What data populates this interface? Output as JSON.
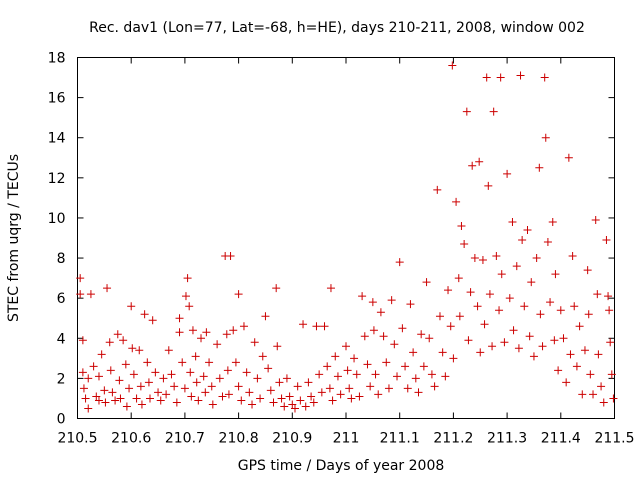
{
  "chart_data": {
    "type": "scatter",
    "title": "Rec. dav1 (Lon=77, Lat=-68, h=HE), days 210-211, 2008, window 002",
    "xlabel": "GPS time / Days of year 2008",
    "ylabel": "STEC from uqrg / TECUs",
    "xlim": [
      210.5,
      211.5
    ],
    "ylim": [
      0,
      18
    ],
    "xticks": [
      210.5,
      210.6,
      210.7,
      210.8,
      210.9,
      211,
      211.1,
      211.2,
      211.3,
      211.4,
      211.5
    ],
    "xtick_labels": [
      "210.5",
      "210.6",
      "210.7",
      "210.8",
      "210.9",
      "211",
      "211.1",
      "211.2",
      "211.3",
      "211.4",
      "211.5"
    ],
    "yticks": [
      0,
      2,
      4,
      6,
      8,
      10,
      12,
      14,
      16,
      18
    ],
    "ytick_labels": [
      "0",
      "2",
      "4",
      "6",
      "8",
      "10",
      "12",
      "14",
      "16",
      "18"
    ],
    "marker": "plus",
    "color": "#cc0000",
    "grid": false,
    "legend": "none",
    "points": [
      [
        210.505,
        7.0
      ],
      [
        210.505,
        6.2
      ],
      [
        210.51,
        3.9
      ],
      [
        210.51,
        2.3
      ],
      [
        210.512,
        1.5
      ],
      [
        210.515,
        1.0
      ],
      [
        210.52,
        2.0
      ],
      [
        210.52,
        0.5
      ],
      [
        210.525,
        6.2
      ],
      [
        210.53,
        2.6
      ],
      [
        210.535,
        1.1
      ],
      [
        210.54,
        2.1
      ],
      [
        210.54,
        0.9
      ],
      [
        210.545,
        3.2
      ],
      [
        210.55,
        1.4
      ],
      [
        210.552,
        0.8
      ],
      [
        210.555,
        6.5
      ],
      [
        210.56,
        3.8
      ],
      [
        210.562,
        2.4
      ],
      [
        210.565,
        1.3
      ],
      [
        210.57,
        0.9
      ],
      [
        210.575,
        4.2
      ],
      [
        210.578,
        1.9
      ],
      [
        210.58,
        1.0
      ],
      [
        210.585,
        3.9
      ],
      [
        210.59,
        2.7
      ],
      [
        210.592,
        0.6
      ],
      [
        210.596,
        1.5
      ],
      [
        210.6,
        5.6
      ],
      [
        210.602,
        3.5
      ],
      [
        210.605,
        2.2
      ],
      [
        210.61,
        1.0
      ],
      [
        210.615,
        3.4
      ],
      [
        210.618,
        1.6
      ],
      [
        210.62,
        0.7
      ],
      [
        210.625,
        5.2
      ],
      [
        210.63,
        2.8
      ],
      [
        210.633,
        1.8
      ],
      [
        210.635,
        1.0
      ],
      [
        210.64,
        4.9
      ],
      [
        210.645,
        2.3
      ],
      [
        210.65,
        1.3
      ],
      [
        210.655,
        0.9
      ],
      [
        210.66,
        2.0
      ],
      [
        210.665,
        1.2
      ],
      [
        210.67,
        3.4
      ],
      [
        210.675,
        2.2
      ],
      [
        210.68,
        1.6
      ],
      [
        210.685,
        0.8
      ],
      [
        210.69,
        4.3
      ],
      [
        210.69,
        5.0
      ],
      [
        210.695,
        2.8
      ],
      [
        210.7,
        1.5
      ],
      [
        210.702,
        6.1
      ],
      [
        210.705,
        7.0
      ],
      [
        210.708,
        5.6
      ],
      [
        210.71,
        2.3
      ],
      [
        210.712,
        1.1
      ],
      [
        210.715,
        4.4
      ],
      [
        210.72,
        3.1
      ],
      [
        210.722,
        1.8
      ],
      [
        210.725,
        0.9
      ],
      [
        210.73,
        4.0
      ],
      [
        210.735,
        2.1
      ],
      [
        210.738,
        1.3
      ],
      [
        210.74,
        4.3
      ],
      [
        210.745,
        2.8
      ],
      [
        210.75,
        1.6
      ],
      [
        210.752,
        0.7
      ],
      [
        210.76,
        3.7
      ],
      [
        210.765,
        2.0
      ],
      [
        210.77,
        1.1
      ],
      [
        210.775,
        8.1
      ],
      [
        210.778,
        4.2
      ],
      [
        210.78,
        2.4
      ],
      [
        210.782,
        1.2
      ],
      [
        210.785,
        8.1
      ],
      [
        210.79,
        4.4
      ],
      [
        210.795,
        2.8
      ],
      [
        210.8,
        6.2
      ],
      [
        210.8,
        1.6
      ],
      [
        210.805,
        0.9
      ],
      [
        210.81,
        4.6
      ],
      [
        210.815,
        2.3
      ],
      [
        210.82,
        1.3
      ],
      [
        210.825,
        0.7
      ],
      [
        210.83,
        3.8
      ],
      [
        210.835,
        2.0
      ],
      [
        210.84,
        1.0
      ],
      [
        210.845,
        3.1
      ],
      [
        210.85,
        5.1
      ],
      [
        210.855,
        2.5
      ],
      [
        210.86,
        1.4
      ],
      [
        210.865,
        0.8
      ],
      [
        210.87,
        6.5
      ],
      [
        210.872,
        3.6
      ],
      [
        210.876,
        1.8
      ],
      [
        210.88,
        1.0
      ],
      [
        210.885,
        0.6
      ],
      [
        210.89,
        2.0
      ],
      [
        210.895,
        1.1
      ],
      [
        210.9,
        0.7
      ],
      [
        210.905,
        0.5
      ],
      [
        210.91,
        1.6
      ],
      [
        210.915,
        0.9
      ],
      [
        210.92,
        4.7
      ],
      [
        210.925,
        0.6
      ],
      [
        210.93,
        1.8
      ],
      [
        210.935,
        1.1
      ],
      [
        210.94,
        0.8
      ],
      [
        210.945,
        4.6
      ],
      [
        210.95,
        2.2
      ],
      [
        210.955,
        1.3
      ],
      [
        210.96,
        4.6
      ],
      [
        210.965,
        2.6
      ],
      [
        210.97,
        1.5
      ],
      [
        210.972,
        6.5
      ],
      [
        210.975,
        0.9
      ],
      [
        210.98,
        3.1
      ],
      [
        210.985,
        2.1
      ],
      [
        210.99,
        1.2
      ],
      [
        211.0,
        3.6
      ],
      [
        211.003,
        2.4
      ],
      [
        211.006,
        1.5
      ],
      [
        211.01,
        1.0
      ],
      [
        211.015,
        3.0
      ],
      [
        211.02,
        2.2
      ],
      [
        211.025,
        1.1
      ],
      [
        211.03,
        6.1
      ],
      [
        211.035,
        4.1
      ],
      [
        211.04,
        2.7
      ],
      [
        211.045,
        1.6
      ],
      [
        211.05,
        5.8
      ],
      [
        211.052,
        4.4
      ],
      [
        211.055,
        2.2
      ],
      [
        211.06,
        1.2
      ],
      [
        211.065,
        5.3
      ],
      [
        211.07,
        4.1
      ],
      [
        211.075,
        2.8
      ],
      [
        211.08,
        1.5
      ],
      [
        211.085,
        5.9
      ],
      [
        211.09,
        3.7
      ],
      [
        211.095,
        2.1
      ],
      [
        211.1,
        7.8
      ],
      [
        211.105,
        4.5
      ],
      [
        211.11,
        2.6
      ],
      [
        211.115,
        1.5
      ],
      [
        211.12,
        5.7
      ],
      [
        211.125,
        3.3
      ],
      [
        211.13,
        2.0
      ],
      [
        211.135,
        1.3
      ],
      [
        211.14,
        4.2
      ],
      [
        211.145,
        2.6
      ],
      [
        211.15,
        6.8
      ],
      [
        211.155,
        4.0
      ],
      [
        211.16,
        2.2
      ],
      [
        211.165,
        1.6
      ],
      [
        211.17,
        11.4
      ],
      [
        211.175,
        5.1
      ],
      [
        211.18,
        3.3
      ],
      [
        211.185,
        2.1
      ],
      [
        211.19,
        6.4
      ],
      [
        211.195,
        4.6
      ],
      [
        211.198,
        17.6
      ],
      [
        211.2,
        3.0
      ],
      [
        211.205,
        10.8
      ],
      [
        211.21,
        7.0
      ],
      [
        211.212,
        5.1
      ],
      [
        211.215,
        9.6
      ],
      [
        211.22,
        8.7
      ],
      [
        211.225,
        15.3
      ],
      [
        211.228,
        3.9
      ],
      [
        211.232,
        6.3
      ],
      [
        211.235,
        12.6
      ],
      [
        211.24,
        8.0
      ],
      [
        211.245,
        5.6
      ],
      [
        211.248,
        12.8
      ],
      [
        211.25,
        3.3
      ],
      [
        211.255,
        7.9
      ],
      [
        211.258,
        4.7
      ],
      [
        211.262,
        17.0
      ],
      [
        211.265,
        11.6
      ],
      [
        211.268,
        6.2
      ],
      [
        211.272,
        3.6
      ],
      [
        211.275,
        15.3
      ],
      [
        211.28,
        8.1
      ],
      [
        211.285,
        5.4
      ],
      [
        211.288,
        17.0
      ],
      [
        211.29,
        7.2
      ],
      [
        211.295,
        3.8
      ],
      [
        211.3,
        12.2
      ],
      [
        211.305,
        6.0
      ],
      [
        211.31,
        9.8
      ],
      [
        211.312,
        4.4
      ],
      [
        211.318,
        7.6
      ],
      [
        211.322,
        3.5
      ],
      [
        211.325,
        17.1
      ],
      [
        211.328,
        8.9
      ],
      [
        211.332,
        5.6
      ],
      [
        211.338,
        9.4
      ],
      [
        211.342,
        4.1
      ],
      [
        211.345,
        6.8
      ],
      [
        211.35,
        3.1
      ],
      [
        211.355,
        8.0
      ],
      [
        211.36,
        12.5
      ],
      [
        211.362,
        5.2
      ],
      [
        211.366,
        3.6
      ],
      [
        211.37,
        17.0
      ],
      [
        211.372,
        14.0
      ],
      [
        211.376,
        8.8
      ],
      [
        211.38,
        5.8
      ],
      [
        211.385,
        9.8
      ],
      [
        211.388,
        3.9
      ],
      [
        211.39,
        7.2
      ],
      [
        211.395,
        2.4
      ],
      [
        211.4,
        5.4
      ],
      [
        211.405,
        4.0
      ],
      [
        211.41,
        1.8
      ],
      [
        211.415,
        13.0
      ],
      [
        211.418,
        3.2
      ],
      [
        211.422,
        8.1
      ],
      [
        211.425,
        5.6
      ],
      [
        211.43,
        2.6
      ],
      [
        211.435,
        4.6
      ],
      [
        211.44,
        1.2
      ],
      [
        211.445,
        3.4
      ],
      [
        211.45,
        7.4
      ],
      [
        211.452,
        5.2
      ],
      [
        211.455,
        2.2
      ],
      [
        211.46,
        1.2
      ],
      [
        211.465,
        9.9
      ],
      [
        211.468,
        6.2
      ],
      [
        211.47,
        3.2
      ],
      [
        211.475,
        1.6
      ],
      [
        211.48,
        0.8
      ],
      [
        211.485,
        8.9
      ],
      [
        211.488,
        6.1
      ],
      [
        211.49,
        5.4
      ],
      [
        211.492,
        3.8
      ],
      [
        211.495,
        2.2
      ],
      [
        211.498,
        1.0
      ]
    ]
  }
}
